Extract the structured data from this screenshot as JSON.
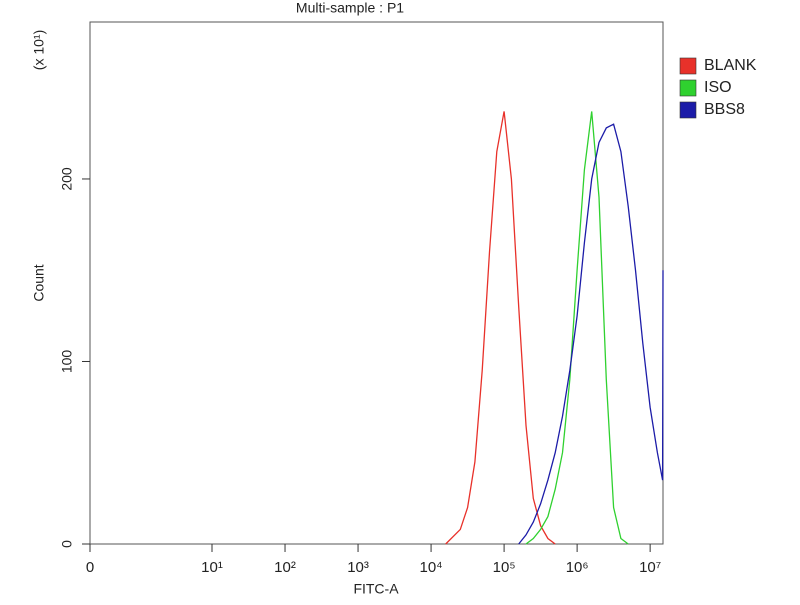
{
  "chart_data": {
    "type": "line",
    "title": "Multi-sample : P1",
    "x_label": "FITC-A",
    "y_label": "Count",
    "y_multiplier": "(x 10¹)",
    "xscale": "log",
    "xlim": [
      0,
      15000000
    ],
    "ylim": [
      0,
      286
    ],
    "xticks": [
      0,
      {
        "value": 10,
        "label": "10¹"
      },
      {
        "value": 100,
        "label": "10²"
      },
      {
        "value": 1000,
        "label": "10³"
      },
      {
        "value": 10000,
        "label": "10⁴"
      },
      {
        "value": 100000,
        "label": "10⁵"
      },
      {
        "value": 1000000,
        "label": "10⁶"
      },
      {
        "value": 10000000,
        "label": "10⁷"
      }
    ],
    "yticks": [
      0,
      100,
      200
    ],
    "legend": "right",
    "series": [
      {
        "name": "BLANK",
        "color": "#e8312a",
        "x": [
          15849,
          25119,
          31623,
          39811,
          50119,
          63096,
          79433,
          100000,
          125893,
          158489,
          199526,
          251189,
          316228,
          398107,
          501187
        ],
        "values": [
          0,
          8,
          20,
          45,
          95,
          160,
          215,
          237,
          200,
          130,
          65,
          25,
          10,
          3,
          0
        ]
      },
      {
        "name": "ISO",
        "color": "#2fd12f",
        "x": [
          199526,
          251189,
          316228,
          398107,
          501187,
          630957,
          794328,
          1000000,
          1258925,
          1584893,
          1995262,
          2511886,
          3162278,
          3981072,
          5011872
        ],
        "values": [
          0,
          3,
          8,
          15,
          30,
          50,
          90,
          150,
          205,
          237,
          190,
          90,
          20,
          3,
          0
        ]
      },
      {
        "name": "BBS8",
        "color": "#1c1ca8",
        "x": [
          158489,
          199526,
          251189,
          316228,
          398107,
          501187,
          630957,
          794328,
          1000000,
          1258925,
          1584893,
          1995262,
          2511886,
          3162278,
          3981072,
          5011872,
          6309573,
          7943282,
          10000000,
          12589254,
          14791084,
          15000000
        ],
        "values": [
          0,
          5,
          12,
          22,
          35,
          50,
          70,
          95,
          125,
          165,
          200,
          220,
          228,
          230,
          215,
          185,
          150,
          110,
          75,
          50,
          35,
          150
        ]
      }
    ]
  }
}
